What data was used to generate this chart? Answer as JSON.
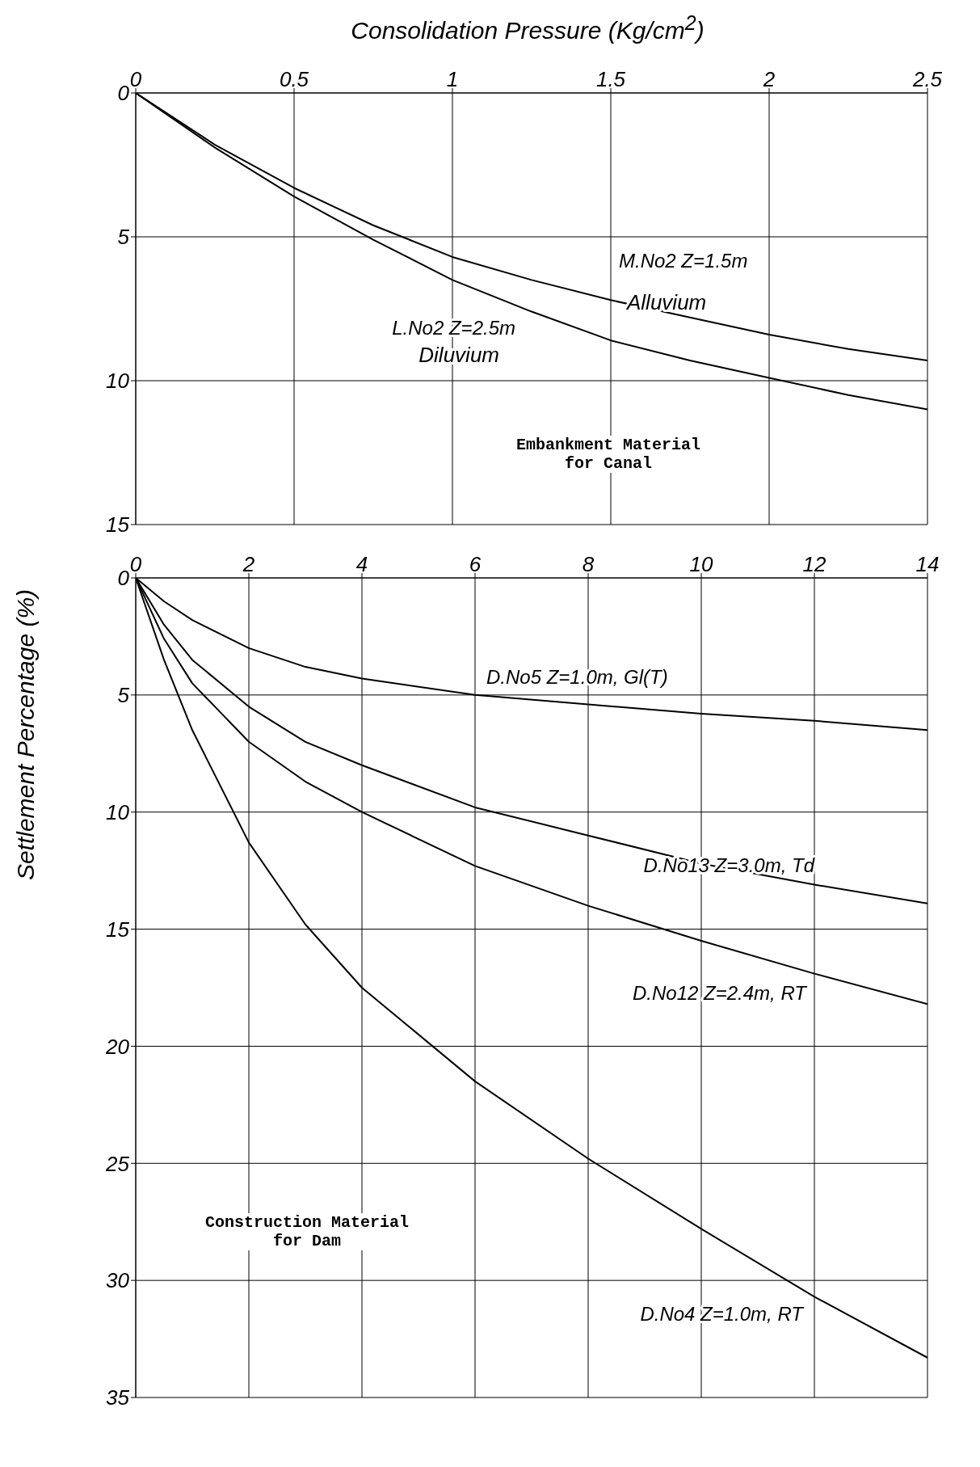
{
  "chart_data": [
    {
      "type": "line",
      "xlabel": "Consolidation Pressure (Kg/cm$^{2}$)",
      "ylabel": "Settlement Percentage (%)",
      "x": [
        0,
        0.25,
        0.5,
        0.75,
        1,
        1.25,
        1.5,
        1.75,
        2,
        2.25,
        2.5
      ],
      "xlim": [
        0,
        2.5
      ],
      "xticks": [
        0,
        0.5,
        1,
        1.5,
        2,
        2.5
      ],
      "ylim": [
        15,
        0
      ],
      "yticks": [
        0,
        5,
        10,
        15
      ],
      "grid": true,
      "legend": false,
      "marker": "none",
      "line_style": "solid",
      "series": [
        {
          "name": "M.No2 Z=1.5m",
          "color": "#000000",
          "values": [
            0,
            1.8,
            3.3,
            4.6,
            5.7,
            6.5,
            7.2,
            7.8,
            8.4,
            8.9,
            9.3
          ]
        },
        {
          "name": "L.No2 Z=2.5m",
          "color": "#000000",
          "values": [
            0,
            1.9,
            3.6,
            5.1,
            6.5,
            7.6,
            8.6,
            9.3,
            9.9,
            10.5,
            11.0
          ]
        }
      ],
      "annotations": [
        {
          "text": "Alluvium",
          "x": 1.5,
          "y": 7.2
        },
        {
          "text": "Diluvium",
          "x": 1.25,
          "y": 7.6
        },
        "Embankment Material for Canal"
      ]
    },
    {
      "type": "line",
      "x": [
        0,
        0.5,
        1,
        2,
        3,
        4,
        6,
        8,
        10,
        12,
        14
      ],
      "xlim": [
        0,
        14
      ],
      "xticks": [
        0,
        2,
        4,
        6,
        8,
        10,
        12,
        14
      ],
      "ylim": [
        35,
        0
      ],
      "yticks": [
        0,
        5,
        10,
        15,
        20,
        25,
        30,
        35
      ],
      "grid": true,
      "legend": false,
      "marker": "none",
      "line_style": "solid",
      "series": [
        {
          "name": "D.No5 Z=1.0m, Gl(T)",
          "color": "#000000",
          "values": [
            0,
            1.0,
            1.8,
            3.0,
            3.8,
            4.3,
            5.0,
            5.4,
            5.8,
            6.1,
            6.5
          ]
        },
        {
          "name": "D.No13 Z=3.0m, Td",
          "color": "#000000",
          "values": [
            0,
            2.0,
            3.5,
            5.5,
            7.0,
            8.0,
            9.8,
            11.0,
            12.2,
            13.1,
            13.9
          ]
        },
        {
          "name": "D.No12 Z=2.4m, RT",
          "color": "#000000",
          "values": [
            0,
            2.6,
            4.5,
            7.0,
            8.7,
            10.0,
            12.3,
            14.0,
            15.5,
            16.9,
            18.2
          ]
        },
        {
          "name": "D.No4 Z=1.0m, RT",
          "color": "#000000",
          "values": [
            0,
            3.5,
            6.5,
            11.3,
            14.8,
            17.5,
            21.5,
            24.8,
            27.8,
            30.7,
            33.3
          ]
        }
      ],
      "annotations": [
        "Construction Material for Dam"
      ]
    }
  ]
}
